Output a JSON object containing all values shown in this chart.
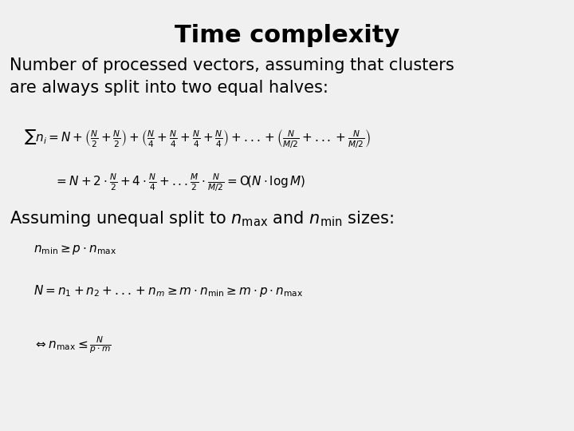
{
  "title": "Time complexity",
  "background_color": "#f0f0f0",
  "text_color": "#000000",
  "title_fontsize": 22,
  "title_fontweight": "bold",
  "body_fontsize": 15,
  "subtitle": "Number of processed vectors, assuming that clusters\nare always split into two equal halves:",
  "eq1": "\\sum n_i = N+\\left(\\frac{N}{2}+\\frac{N}{2}\\right)+\\left(\\frac{N}{4}+\\frac{N}{4}+\\frac{N}{4}+\\frac{N}{4}\\right)+...+\\left(\\frac{N}{M/2}+...+\\frac{N}{M/2}\\right)",
  "eq2": "= N+2\\cdot\\frac{N}{2}+4\\cdot\\frac{N}{4}+...\\frac{M}{2}\\cdot\\frac{N}{M/2} = \\mathrm{O}\\!\\left(N\\cdot\\log M\\right)",
  "unequal_text": "Assuming unequal split to $n_{\\mathrm{max}}$ and $n_{\\mathrm{min}}$ sizes:",
  "eq3": "n_{\\min} \\geq p \\cdot n_{\\max}",
  "eq4": "N = n_1 + n_2 + ... + n_m \\geq m \\cdot n_{\\min} \\geq m \\cdot p \\cdot n_{\\max}",
  "eq5": "\\Leftrightarrow n_{\\max} \\leq \\frac{N}{p \\cdot m}"
}
